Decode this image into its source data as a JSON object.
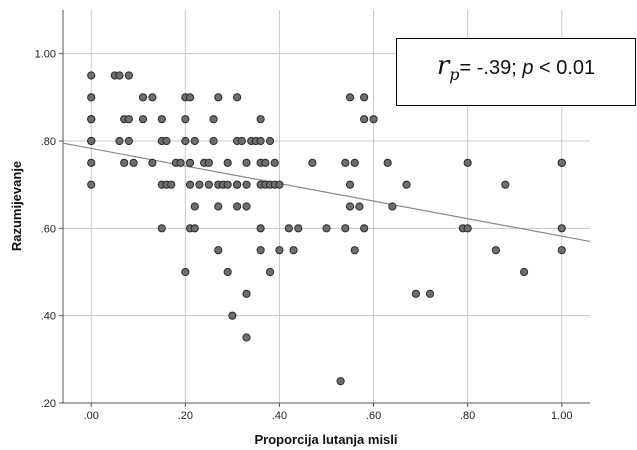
{
  "chart_data": {
    "type": "scatter",
    "xlabel": "Proporcija lutanja misli",
    "ylabel": "Razumijevanje",
    "xlim": [
      -0.06,
      1.06
    ],
    "ylim": [
      0.2,
      1.1
    ],
    "x_ticks": [
      ".00",
      ".20",
      ".40",
      ".60",
      ".80",
      "1.00"
    ],
    "y_ticks": [
      "1.00",
      ".80",
      ".60",
      ".40",
      ".20"
    ],
    "grid": true,
    "annotation": {
      "r_symbol": "r",
      "r_subscript": "p",
      "r_value": "= -.39;",
      "p_symbol": "p",
      "p_value": "< 0.01"
    },
    "fit_line": {
      "x": [
        -0.06,
        1.06
      ],
      "y": [
        0.795,
        0.57
      ]
    },
    "points": [
      [
        0.0,
        0.95
      ],
      [
        0.0,
        0.9
      ],
      [
        0.0,
        0.85
      ],
      [
        0.0,
        0.85
      ],
      [
        0.0,
        0.8
      ],
      [
        0.0,
        0.8
      ],
      [
        0.0,
        0.75
      ],
      [
        0.0,
        0.7
      ],
      [
        0.05,
        0.95
      ],
      [
        0.06,
        0.95
      ],
      [
        0.08,
        0.95
      ],
      [
        0.06,
        0.8
      ],
      [
        0.07,
        0.85
      ],
      [
        0.08,
        0.85
      ],
      [
        0.08,
        0.8
      ],
      [
        0.07,
        0.75
      ],
      [
        0.09,
        0.75
      ],
      [
        0.11,
        0.9
      ],
      [
        0.11,
        0.85
      ],
      [
        0.13,
        0.9
      ],
      [
        0.13,
        0.75
      ],
      [
        0.15,
        0.85
      ],
      [
        0.15,
        0.8
      ],
      [
        0.16,
        0.8
      ],
      [
        0.15,
        0.7
      ],
      [
        0.16,
        0.7
      ],
      [
        0.17,
        0.7
      ],
      [
        0.15,
        0.6
      ],
      [
        0.18,
        0.75
      ],
      [
        0.19,
        0.75
      ],
      [
        0.2,
        0.9
      ],
      [
        0.21,
        0.9
      ],
      [
        0.2,
        0.85
      ],
      [
        0.2,
        0.8
      ],
      [
        0.22,
        0.8
      ],
      [
        0.21,
        0.75
      ],
      [
        0.21,
        0.7
      ],
      [
        0.22,
        0.65
      ],
      [
        0.21,
        0.6
      ],
      [
        0.22,
        0.6
      ],
      [
        0.2,
        0.5
      ],
      [
        0.23,
        0.7
      ],
      [
        0.24,
        0.75
      ],
      [
        0.25,
        0.75
      ],
      [
        0.25,
        0.7
      ],
      [
        0.26,
        0.85
      ],
      [
        0.26,
        0.8
      ],
      [
        0.27,
        0.9
      ],
      [
        0.27,
        0.7
      ],
      [
        0.27,
        0.65
      ],
      [
        0.27,
        0.55
      ],
      [
        0.28,
        0.7
      ],
      [
        0.29,
        0.75
      ],
      [
        0.29,
        0.7
      ],
      [
        0.29,
        0.5
      ],
      [
        0.3,
        0.4
      ],
      [
        0.31,
        0.9
      ],
      [
        0.31,
        0.8
      ],
      [
        0.31,
        0.7
      ],
      [
        0.31,
        0.65
      ],
      [
        0.31,
        0.7
      ],
      [
        0.32,
        0.8
      ],
      [
        0.33,
        0.75
      ],
      [
        0.33,
        0.7
      ],
      [
        0.33,
        0.65
      ],
      [
        0.33,
        0.45
      ],
      [
        0.33,
        0.35
      ],
      [
        0.34,
        0.8
      ],
      [
        0.35,
        0.8
      ],
      [
        0.36,
        0.8
      ],
      [
        0.36,
        0.85
      ],
      [
        0.36,
        0.75
      ],
      [
        0.36,
        0.7
      ],
      [
        0.36,
        0.6
      ],
      [
        0.36,
        0.55
      ],
      [
        0.37,
        0.75
      ],
      [
        0.37,
        0.7
      ],
      [
        0.38,
        0.8
      ],
      [
        0.38,
        0.7
      ],
      [
        0.38,
        0.5
      ],
      [
        0.39,
        0.75
      ],
      [
        0.39,
        0.7
      ],
      [
        0.4,
        0.7
      ],
      [
        0.4,
        0.55
      ],
      [
        0.42,
        0.6
      ],
      [
        0.43,
        0.55
      ],
      [
        0.44,
        0.6
      ],
      [
        0.47,
        0.75
      ],
      [
        0.5,
        0.6
      ],
      [
        0.53,
        0.25
      ],
      [
        0.54,
        0.75
      ],
      [
        0.54,
        0.6
      ],
      [
        0.55,
        0.9
      ],
      [
        0.55,
        0.7
      ],
      [
        0.55,
        0.65
      ],
      [
        0.56,
        0.75
      ],
      [
        0.56,
        0.55
      ],
      [
        0.57,
        0.65
      ],
      [
        0.58,
        0.9
      ],
      [
        0.58,
        0.85
      ],
      [
        0.58,
        0.6
      ],
      [
        0.6,
        0.85
      ],
      [
        0.63,
        0.75
      ],
      [
        0.64,
        0.65
      ],
      [
        0.67,
        0.7
      ],
      [
        0.69,
        0.45
      ],
      [
        0.72,
        0.45
      ],
      [
        0.79,
        0.6
      ],
      [
        0.8,
        0.75
      ],
      [
        0.8,
        0.6
      ],
      [
        0.86,
        0.55
      ],
      [
        0.88,
        0.7
      ],
      [
        0.92,
        0.5
      ],
      [
        1.0,
        0.75
      ],
      [
        1.0,
        0.75
      ],
      [
        1.0,
        0.6
      ],
      [
        1.0,
        0.55
      ]
    ]
  }
}
